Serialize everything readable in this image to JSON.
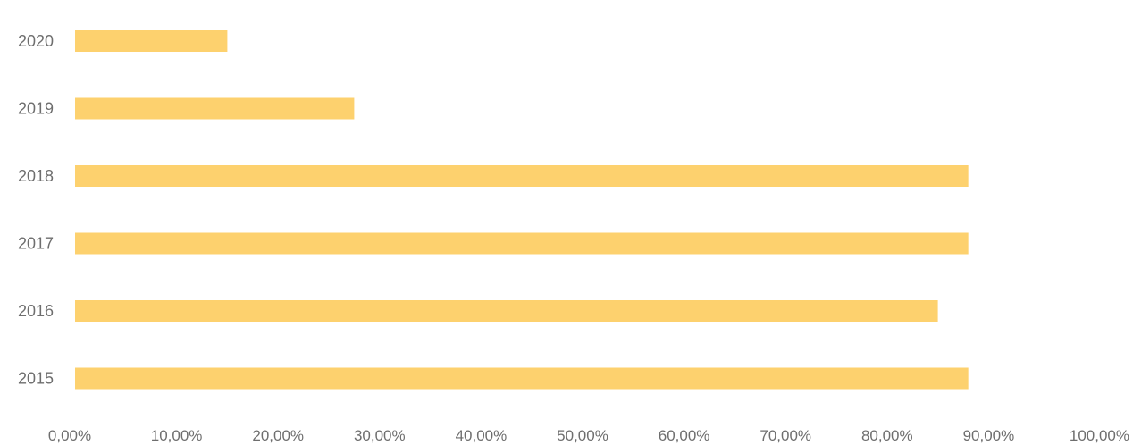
{
  "chart_data": {
    "type": "bar",
    "orientation": "horizontal",
    "title": "",
    "xlabel": "",
    "ylabel": "",
    "categories": [
      "2020",
      "2019",
      "2018",
      "2017",
      "2016",
      "2015"
    ],
    "values": [
      15.0,
      27.5,
      88.0,
      88.0,
      85.0,
      88.0
    ],
    "xlim": [
      0,
      100
    ],
    "x_ticks": [
      "0,00%",
      "10,00%",
      "20,00%",
      "30,00%",
      "40,00%",
      "50,00%",
      "60,00%",
      "70,00%",
      "80,00%",
      "90,00%",
      "100,00%"
    ],
    "grid": false,
    "legend": "none",
    "bar_color": "#fdd16e"
  }
}
